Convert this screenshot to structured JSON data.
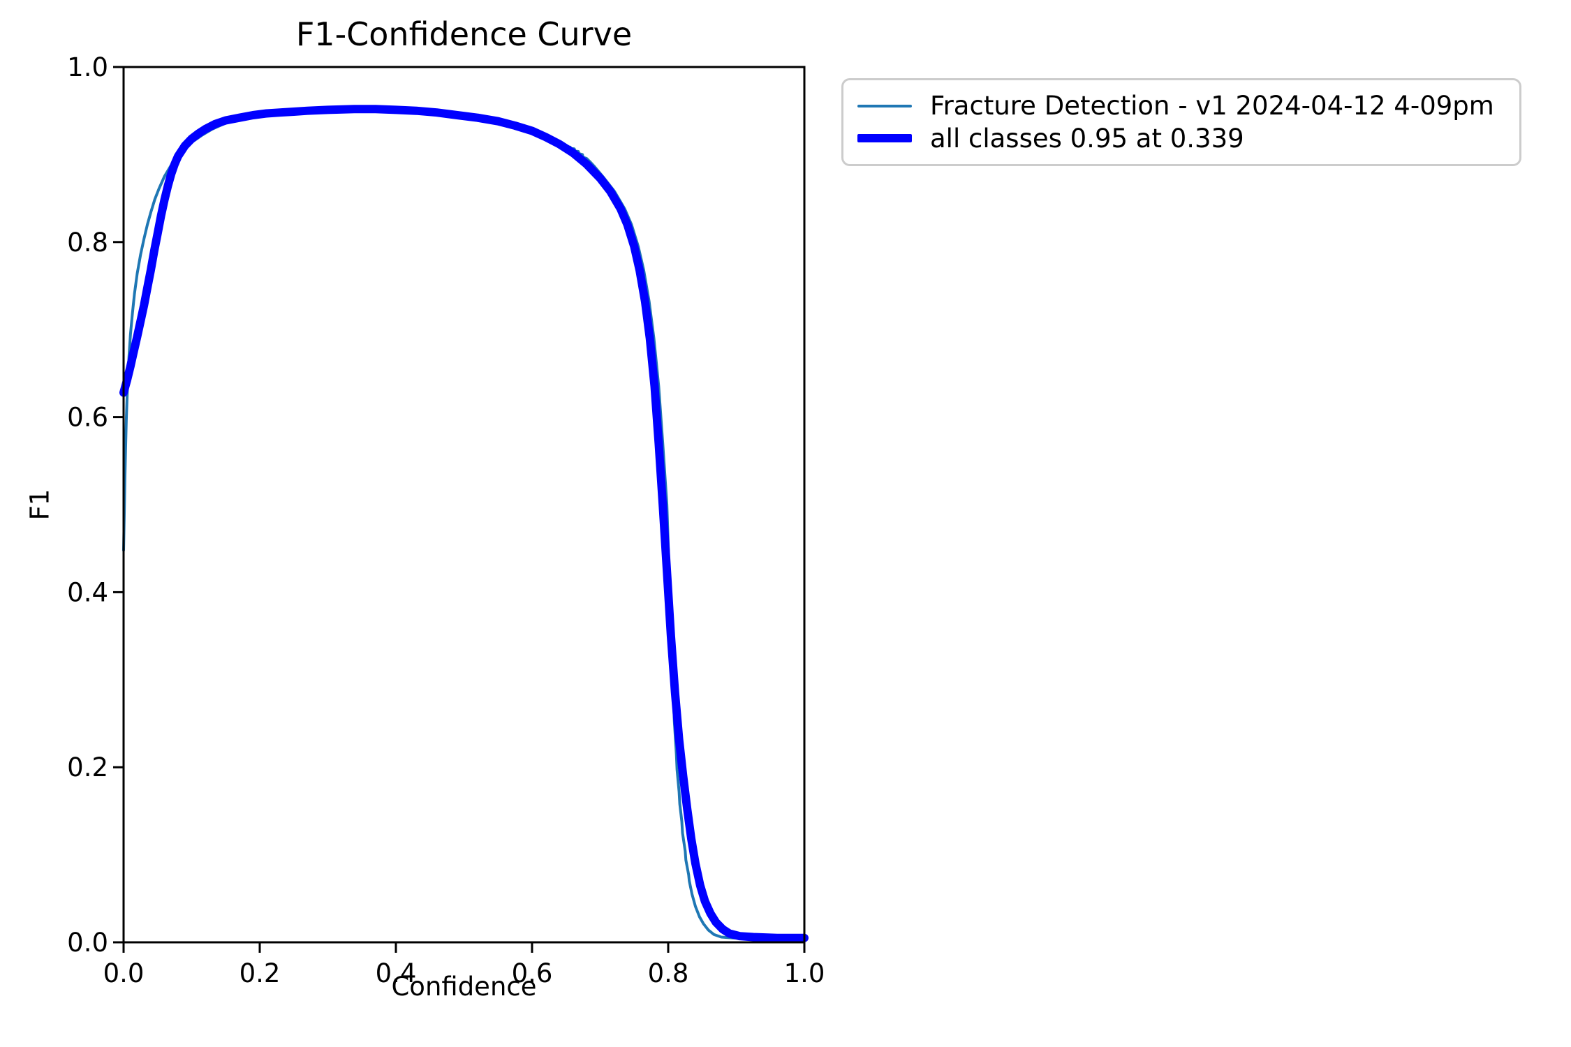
{
  "chart_data": {
    "type": "line",
    "title": "F1-Confidence Curve",
    "xlabel": "Confidence",
    "ylabel": "F1",
    "xlim": [
      0.0,
      1.0
    ],
    "ylim": [
      0.0,
      1.0
    ],
    "grid": false,
    "legend_position": "outside-upper-right",
    "x_ticks": [
      "0.0",
      "0.2",
      "0.4",
      "0.6",
      "0.8",
      "1.0"
    ],
    "y_ticks": [
      "0.0",
      "0.2",
      "0.4",
      "0.6",
      "0.8",
      "1.0"
    ],
    "axis_color": "#000000",
    "peak": {
      "f1": 0.95,
      "confidence": 0.339
    },
    "series": [
      {
        "name": "Fracture Detection - v1 2024-04-12 4-09pm",
        "color": "#1f77b4",
        "line_width": 4,
        "points": [
          [
            0.0,
            0.448
          ],
          [
            0.001,
            0.49
          ],
          [
            0.002,
            0.53
          ],
          [
            0.003,
            0.565
          ],
          [
            0.004,
            0.597
          ],
          [
            0.006,
            0.64
          ],
          [
            0.008,
            0.67
          ],
          [
            0.01,
            0.694
          ],
          [
            0.013,
            0.719
          ],
          [
            0.016,
            0.741
          ],
          [
            0.02,
            0.764
          ],
          [
            0.025,
            0.786
          ],
          [
            0.03,
            0.804
          ],
          [
            0.035,
            0.82
          ],
          [
            0.04,
            0.834
          ],
          [
            0.046,
            0.849
          ],
          [
            0.052,
            0.861
          ],
          [
            0.06,
            0.875
          ],
          [
            0.07,
            0.888
          ],
          [
            0.08,
            0.898
          ],
          [
            0.09,
            0.907
          ],
          [
            0.1,
            0.914
          ],
          [
            0.115,
            0.922
          ],
          [
            0.13,
            0.929
          ],
          [
            0.15,
            0.936
          ],
          [
            0.17,
            0.941
          ],
          [
            0.19,
            0.944
          ],
          [
            0.22,
            0.947
          ],
          [
            0.25,
            0.949
          ],
          [
            0.28,
            0.95
          ],
          [
            0.31,
            0.951
          ],
          [
            0.34,
            0.951
          ],
          [
            0.37,
            0.951
          ],
          [
            0.4,
            0.95
          ],
          [
            0.43,
            0.949
          ],
          [
            0.46,
            0.947
          ],
          [
            0.49,
            0.944
          ],
          [
            0.52,
            0.941
          ],
          [
            0.55,
            0.937
          ],
          [
            0.575,
            0.932
          ],
          [
            0.6,
            0.926
          ],
          [
            0.62,
            0.92
          ],
          [
            0.632,
            0.916
          ],
          [
            0.64,
            0.913
          ],
          [
            0.645,
            0.9125
          ],
          [
            0.646,
            0.911
          ],
          [
            0.65,
            0.9105
          ],
          [
            0.651,
            0.909
          ],
          [
            0.656,
            0.9085
          ],
          [
            0.657,
            0.907
          ],
          [
            0.662,
            0.9065
          ],
          [
            0.663,
            0.904
          ],
          [
            0.668,
            0.9035
          ],
          [
            0.669,
            0.901
          ],
          [
            0.674,
            0.9
          ],
          [
            0.675,
            0.897
          ],
          [
            0.68,
            0.8955
          ],
          [
            0.686,
            0.891
          ],
          [
            0.692,
            0.886
          ],
          [
            0.698,
            0.8805
          ],
          [
            0.706,
            0.873
          ],
          [
            0.721,
            0.858
          ],
          [
            0.736,
            0.838
          ],
          [
            0.746,
            0.82
          ],
          [
            0.756,
            0.795
          ],
          [
            0.764,
            0.768
          ],
          [
            0.772,
            0.732
          ],
          [
            0.779,
            0.69
          ],
          [
            0.786,
            0.635
          ],
          [
            0.792,
            0.57
          ],
          [
            0.798,
            0.5
          ],
          [
            0.8,
            0.455
          ],
          [
            0.803,
            0.385
          ],
          [
            0.806,
            0.315
          ],
          [
            0.809,
            0.252
          ],
          [
            0.812,
            0.215
          ],
          [
            0.813,
            0.197
          ],
          [
            0.816,
            0.172
          ],
          [
            0.817,
            0.158
          ],
          [
            0.82,
            0.138
          ],
          [
            0.821,
            0.125
          ],
          [
            0.825,
            0.104
          ],
          [
            0.826,
            0.094
          ],
          [
            0.83,
            0.077
          ],
          [
            0.831,
            0.07
          ],
          [
            0.835,
            0.055
          ],
          [
            0.84,
            0.041
          ],
          [
            0.846,
            0.029
          ],
          [
            0.852,
            0.021
          ],
          [
            0.859,
            0.014
          ],
          [
            0.867,
            0.009
          ],
          [
            0.878,
            0.006
          ],
          [
            0.895,
            0.005
          ],
          [
            0.93,
            0.004
          ],
          [
            1.0,
            0.004
          ]
        ]
      },
      {
        "name": "all classes 0.95 at 0.339",
        "color": "#0000ff",
        "line_width": 12,
        "points": [
          [
            0.0,
            0.628
          ],
          [
            0.005,
            0.642
          ],
          [
            0.01,
            0.658
          ],
          [
            0.015,
            0.675
          ],
          [
            0.02,
            0.692
          ],
          [
            0.025,
            0.71
          ],
          [
            0.03,
            0.728
          ],
          [
            0.035,
            0.748
          ],
          [
            0.04,
            0.768
          ],
          [
            0.045,
            0.79
          ],
          [
            0.05,
            0.81
          ],
          [
            0.055,
            0.83
          ],
          [
            0.06,
            0.848
          ],
          [
            0.065,
            0.864
          ],
          [
            0.07,
            0.878
          ],
          [
            0.075,
            0.889
          ],
          [
            0.08,
            0.898
          ],
          [
            0.09,
            0.91
          ],
          [
            0.1,
            0.918
          ],
          [
            0.11,
            0.924
          ],
          [
            0.12,
            0.929
          ],
          [
            0.135,
            0.935
          ],
          [
            0.15,
            0.939
          ],
          [
            0.17,
            0.942
          ],
          [
            0.19,
            0.945
          ],
          [
            0.21,
            0.947
          ],
          [
            0.23,
            0.948
          ],
          [
            0.25,
            0.949
          ],
          [
            0.27,
            0.95
          ],
          [
            0.3,
            0.951
          ],
          [
            0.339,
            0.952
          ],
          [
            0.37,
            0.952
          ],
          [
            0.4,
            0.951
          ],
          [
            0.43,
            0.95
          ],
          [
            0.46,
            0.948
          ],
          [
            0.49,
            0.945
          ],
          [
            0.52,
            0.942
          ],
          [
            0.55,
            0.938
          ],
          [
            0.575,
            0.933
          ],
          [
            0.6,
            0.927
          ],
          [
            0.62,
            0.92
          ],
          [
            0.64,
            0.912
          ],
          [
            0.66,
            0.902
          ],
          [
            0.68,
            0.889
          ],
          [
            0.7,
            0.873
          ],
          [
            0.715,
            0.858
          ],
          [
            0.73,
            0.838
          ],
          [
            0.74,
            0.82
          ],
          [
            0.75,
            0.795
          ],
          [
            0.758,
            0.768
          ],
          [
            0.766,
            0.732
          ],
          [
            0.773,
            0.69
          ],
          [
            0.78,
            0.635
          ],
          [
            0.786,
            0.57
          ],
          [
            0.792,
            0.5
          ],
          [
            0.798,
            0.425
          ],
          [
            0.804,
            0.35
          ],
          [
            0.81,
            0.285
          ],
          [
            0.816,
            0.232
          ],
          [
            0.822,
            0.19
          ],
          [
            0.828,
            0.152
          ],
          [
            0.834,
            0.118
          ],
          [
            0.84,
            0.09
          ],
          [
            0.847,
            0.065
          ],
          [
            0.854,
            0.047
          ],
          [
            0.862,
            0.033
          ],
          [
            0.87,
            0.023
          ],
          [
            0.88,
            0.015
          ],
          [
            0.89,
            0.01
          ],
          [
            0.905,
            0.007
          ],
          [
            0.925,
            0.006
          ],
          [
            0.96,
            0.005
          ],
          [
            1.0,
            0.005
          ]
        ]
      }
    ]
  },
  "legend": {
    "border_color": "#cccccc",
    "items": [
      {
        "label": "Fracture Detection - v1 2024-04-12 4-09pm",
        "color": "#1f77b4",
        "line_width": 4
      },
      {
        "label": "all classes 0.95 at 0.339",
        "color": "#0000ff",
        "line_width": 12
      }
    ]
  }
}
